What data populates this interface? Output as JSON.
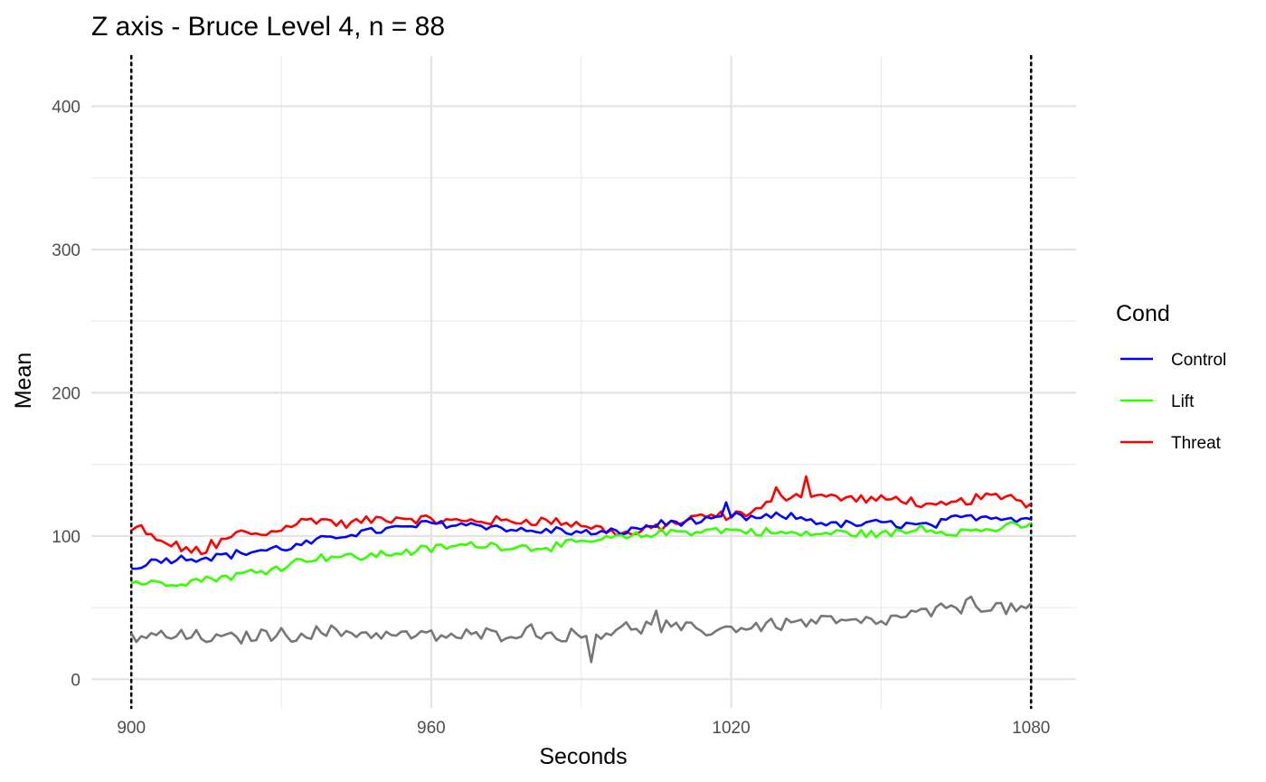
{
  "chart_data": {
    "type": "line",
    "title": "Z axis - Bruce Level 4, n =  88",
    "xlabel": "Seconds",
    "ylabel": "Mean",
    "xlim": [
      892,
      1089
    ],
    "ylim": [
      -20,
      435
    ],
    "x_ticks": [
      900,
      960,
      1020,
      1080
    ],
    "y_ticks": [
      0,
      100,
      200,
      300,
      400
    ],
    "grid": true,
    "vlines": [
      900,
      1080
    ],
    "legend": {
      "title": "Cond",
      "position": "right",
      "entries": [
        {
          "label": "Control",
          "color": "#0000ff"
        },
        {
          "label": "Lift",
          "color": "#33ff00"
        },
        {
          "label": "Threat",
          "color": "#ff0000"
        }
      ]
    },
    "x": {
      "start": 900,
      "end": 1080,
      "step": 1
    },
    "series": [
      {
        "name": "Threat",
        "color": "#ff0000",
        "anchors": [
          [
            900,
            103
          ],
          [
            902,
            106
          ],
          [
            905,
            96
          ],
          [
            908,
            94
          ],
          [
            912,
            90
          ],
          [
            915,
            87
          ],
          [
            918,
            95
          ],
          [
            922,
            103
          ],
          [
            926,
            100
          ],
          [
            930,
            106
          ],
          [
            934,
            110
          ],
          [
            938,
            112
          ],
          [
            942,
            108
          ],
          [
            946,
            110
          ],
          [
            950,
            112
          ],
          [
            955,
            113
          ],
          [
            960,
            111
          ],
          [
            965,
            110
          ],
          [
            970,
            111
          ],
          [
            975,
            110
          ],
          [
            980,
            111
          ],
          [
            985,
            110
          ],
          [
            990,
            108
          ],
          [
            995,
            104
          ],
          [
            1000,
            101
          ],
          [
            1005,
            106
          ],
          [
            1010,
            110
          ],
          [
            1015,
            114
          ],
          [
            1020,
            114
          ],
          [
            1025,
            118
          ],
          [
            1030,
            127
          ],
          [
            1035,
            131
          ],
          [
            1040,
            127
          ],
          [
            1045,
            126
          ],
          [
            1050,
            125
          ],
          [
            1055,
            126
          ],
          [
            1060,
            119
          ],
          [
            1065,
            123
          ],
          [
            1070,
            127
          ],
          [
            1075,
            127
          ],
          [
            1080,
            122
          ]
        ],
        "noise": 3.2,
        "spikes": [
          [
            916,
            10
          ],
          [
            1035,
            9
          ],
          [
            1029,
            6
          ],
          [
            1076,
            5
          ]
        ]
      },
      {
        "name": "Control",
        "color": "#0000ff",
        "anchors": [
          [
            900,
            77
          ],
          [
            903,
            82
          ],
          [
            908,
            84
          ],
          [
            914,
            85
          ],
          [
            920,
            87
          ],
          [
            926,
            90
          ],
          [
            932,
            92
          ],
          [
            938,
            97
          ],
          [
            944,
            102
          ],
          [
            950,
            104
          ],
          [
            955,
            106
          ],
          [
            960,
            109
          ],
          [
            965,
            108
          ],
          [
            970,
            108
          ],
          [
            975,
            105
          ],
          [
            980,
            103
          ],
          [
            985,
            104
          ],
          [
            990,
            102
          ],
          [
            995,
            102
          ],
          [
            1000,
            104
          ],
          [
            1005,
            108
          ],
          [
            1010,
            110
          ],
          [
            1015,
            110
          ],
          [
            1020,
            114
          ],
          [
            1025,
            112
          ],
          [
            1030,
            114
          ],
          [
            1035,
            112
          ],
          [
            1040,
            108
          ],
          [
            1045,
            108
          ],
          [
            1050,
            109
          ],
          [
            1055,
            108
          ],
          [
            1060,
            107
          ],
          [
            1065,
            112
          ],
          [
            1070,
            114
          ],
          [
            1075,
            113
          ],
          [
            1080,
            112
          ]
        ],
        "noise": 2.6,
        "spikes": [
          [
            1019,
            8
          ]
        ]
      },
      {
        "name": "Lift",
        "color": "#33ff00",
        "anchors": [
          [
            900,
            68
          ],
          [
            905,
            67
          ],
          [
            910,
            68
          ],
          [
            915,
            70
          ],
          [
            920,
            72
          ],
          [
            925,
            75
          ],
          [
            930,
            79
          ],
          [
            935,
            84
          ],
          [
            940,
            86
          ],
          [
            945,
            85
          ],
          [
            950,
            87
          ],
          [
            955,
            89
          ],
          [
            960,
            91
          ],
          [
            965,
            93
          ],
          [
            970,
            94
          ],
          [
            975,
            93
          ],
          [
            980,
            92
          ],
          [
            985,
            93
          ],
          [
            990,
            95
          ],
          [
            995,
            98
          ],
          [
            1000,
            99
          ],
          [
            1005,
            102
          ],
          [
            1010,
            103
          ],
          [
            1015,
            104
          ],
          [
            1020,
            104
          ],
          [
            1025,
            103
          ],
          [
            1030,
            102
          ],
          [
            1035,
            101
          ],
          [
            1040,
            102
          ],
          [
            1045,
            102
          ],
          [
            1050,
            101
          ],
          [
            1055,
            103
          ],
          [
            1060,
            104
          ],
          [
            1065,
            103
          ],
          [
            1070,
            104
          ],
          [
            1075,
            106
          ],
          [
            1080,
            107
          ]
        ],
        "noise": 2.8,
        "spikes": [
          [
            1058,
            7
          ]
        ]
      },
      {
        "color": "#777777",
        "anchors": [
          [
            900,
            30
          ],
          [
            905,
            30
          ],
          [
            910,
            30
          ],
          [
            915,
            29
          ],
          [
            920,
            28
          ],
          [
            925,
            31
          ],
          [
            930,
            31
          ],
          [
            935,
            32
          ],
          [
            940,
            33
          ],
          [
            945,
            33
          ],
          [
            950,
            31
          ],
          [
            955,
            31
          ],
          [
            960,
            30
          ],
          [
            965,
            30
          ],
          [
            970,
            31
          ],
          [
            975,
            32
          ],
          [
            980,
            34
          ],
          [
            985,
            31
          ],
          [
            990,
            30
          ],
          [
            995,
            33
          ],
          [
            1000,
            36
          ],
          [
            1005,
            37
          ],
          [
            1010,
            35
          ],
          [
            1015,
            34
          ],
          [
            1020,
            36
          ],
          [
            1025,
            37
          ],
          [
            1030,
            39
          ],
          [
            1035,
            40
          ],
          [
            1040,
            41
          ],
          [
            1045,
            39
          ],
          [
            1050,
            40
          ],
          [
            1055,
            44
          ],
          [
            1060,
            47
          ],
          [
            1065,
            50
          ],
          [
            1070,
            52
          ],
          [
            1075,
            49
          ],
          [
            1080,
            49
          ]
        ],
        "noise": 4.5,
        "spikes": [
          [
            992,
            -14
          ],
          [
            1068,
            7
          ],
          [
            1005,
            8
          ]
        ]
      }
    ]
  }
}
